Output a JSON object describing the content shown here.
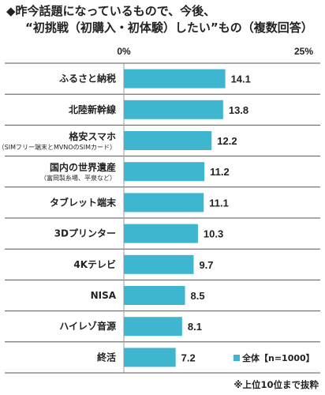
{
  "title": {
    "line1": "◆昨今話題になっているもので、今後、",
    "line2": "“初挑戦（初購入・初体験）したい”もの（複数回答）"
  },
  "colors": {
    "bar": "#3fb6cf",
    "separator": "#555555",
    "baseline": "#999999"
  },
  "legend": {
    "label": "全体【n=1000】"
  },
  "footnote": "※上位10位まで抜粋",
  "chart_data": {
    "type": "bar",
    "orientation": "horizontal",
    "xlim": [
      0,
      25
    ],
    "tick_labels": [
      "0%",
      "25%"
    ],
    "categories": [
      {
        "label": "ふるさと納税",
        "sub": ""
      },
      {
        "label": "北陸新幹線",
        "sub": ""
      },
      {
        "label": "格安スマホ",
        "sub": "（SIMフリー端末とMVNOのSIMカード）"
      },
      {
        "label": "国内の世界遺産",
        "sub": "（富岡製糸場、平泉など）"
      },
      {
        "label": "タブレット端末",
        "sub": ""
      },
      {
        "label": "3Dプリンター",
        "sub": ""
      },
      {
        "label": "4Kテレビ",
        "sub": ""
      },
      {
        "label": "NISA",
        "sub": ""
      },
      {
        "label": "ハイレゾ音源",
        "sub": ""
      },
      {
        "label": "終活",
        "sub": ""
      }
    ],
    "series": [
      {
        "name": "全体【n=1000】",
        "values": [
          14.1,
          13.8,
          12.2,
          11.2,
          11.1,
          10.3,
          9.7,
          8.5,
          8.1,
          7.2
        ]
      }
    ]
  }
}
